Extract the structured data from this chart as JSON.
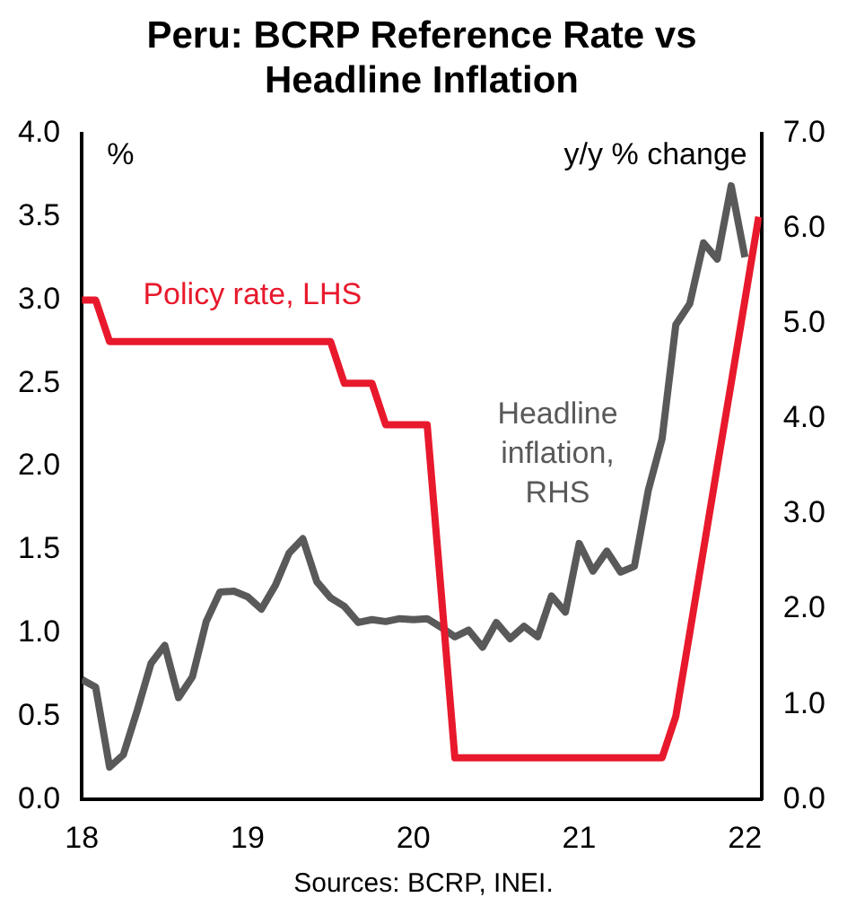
{
  "chart_data": {
    "type": "line",
    "title": "Peru: BCRP Reference Rate vs Headline Inflation",
    "ylabel": "%",
    "y2label": "y/y % change",
    "annotations": [
      "Sources: BCRP, INEI."
    ],
    "xlim": [
      18,
      22.1
    ],
    "xticks": [
      18,
      19,
      20,
      21,
      22
    ],
    "ylim": [
      0,
      4
    ],
    "yticks": [
      {
        "value": 0,
        "label": "0.0"
      },
      {
        "value": 0.5,
        "label": "0.5"
      },
      {
        "value": 1,
        "label": "1.0"
      },
      {
        "value": 1.5,
        "label": "1.5"
      },
      {
        "value": 2,
        "label": "2.0"
      },
      {
        "value": 2.5,
        "label": "2.5"
      },
      {
        "value": 3,
        "label": "3.0"
      },
      {
        "value": 3.5,
        "label": "3.5"
      },
      {
        "value": 4,
        "label": "4.0"
      }
    ],
    "y2lim": [
      0,
      7
    ],
    "y2ticks": [
      {
        "value": 0,
        "label": "0.0"
      },
      {
        "value": 1,
        "label": "1.0"
      },
      {
        "value": 2,
        "label": "2.0"
      },
      {
        "value": 3,
        "label": "3.0"
      },
      {
        "value": 4,
        "label": "4.0"
      },
      {
        "value": 5,
        "label": "5.0"
      },
      {
        "value": 6,
        "label": "6.0"
      },
      {
        "value": 7,
        "label": "7.0"
      }
    ],
    "grid": false,
    "legend": false,
    "marker": "none",
    "line_style": "solid",
    "series": [
      {
        "name": "Policy rate, LHS",
        "color": "#e8192c",
        "axis": "y",
        "x": [
          18,
          18.083,
          18.167,
          18.25,
          18.333,
          18.417,
          18.5,
          18.583,
          18.667,
          18.75,
          18.833,
          18.917,
          19,
          19.083,
          19.167,
          19.25,
          19.333,
          19.417,
          19.5,
          19.583,
          19.667,
          19.75,
          19.833,
          19.917,
          20,
          20.083,
          20.167,
          20.25,
          20.333,
          20.417,
          20.5,
          20.583,
          20.667,
          20.75,
          20.833,
          20.917,
          21,
          21.083,
          21.167,
          21.25,
          21.333,
          21.417,
          21.5,
          21.583,
          21.667,
          21.75,
          21.833,
          21.917,
          22,
          22.083
        ],
        "values": [
          3,
          3,
          2.75,
          2.75,
          2.75,
          2.75,
          2.75,
          2.75,
          2.75,
          2.75,
          2.75,
          2.75,
          2.75,
          2.75,
          2.75,
          2.75,
          2.75,
          2.75,
          2.75,
          2.5,
          2.5,
          2.5,
          2.25,
          2.25,
          2.25,
          2.25,
          1.25,
          0.25,
          0.25,
          0.25,
          0.25,
          0.25,
          0.25,
          0.25,
          0.25,
          0.25,
          0.25,
          0.25,
          0.25,
          0.25,
          0.25,
          0.25,
          0.25,
          0.5,
          1,
          1.5,
          2,
          2.5,
          3,
          3.5
        ]
      },
      {
        "name": "Headline inflation, RHS",
        "color": "#595959",
        "axis": "y2",
        "x": [
          18,
          18.083,
          18.167,
          18.25,
          18.333,
          18.417,
          18.5,
          18.583,
          18.667,
          18.75,
          18.833,
          18.917,
          19,
          19.083,
          19.167,
          19.25,
          19.333,
          19.417,
          19.5,
          19.583,
          19.667,
          19.75,
          19.833,
          19.917,
          20,
          20.083,
          20.167,
          20.25,
          20.333,
          20.417,
          20.5,
          20.583,
          20.667,
          20.75,
          20.833,
          20.917,
          21,
          21.083,
          21.167,
          21.25,
          21.333,
          21.417,
          21.5,
          21.583,
          21.667,
          21.75,
          21.833,
          21.917,
          22
        ],
        "values": [
          1.26,
          1.18,
          0.34,
          0.47,
          0.93,
          1.43,
          1.62,
          1.07,
          1.29,
          1.87,
          2.18,
          2.19,
          2.13,
          2.0,
          2.25,
          2.59,
          2.74,
          2.29,
          2.12,
          2.03,
          1.86,
          1.89,
          1.87,
          1.9,
          1.89,
          1.9,
          1.81,
          1.71,
          1.78,
          1.6,
          1.86,
          1.69,
          1.82,
          1.71,
          2.14,
          1.97,
          2.69,
          2.4,
          2.61,
          2.39,
          2.45,
          3.25,
          3.79,
          4.99,
          5.21,
          5.85,
          5.68,
          6.45,
          5.7
        ]
      }
    ]
  }
}
